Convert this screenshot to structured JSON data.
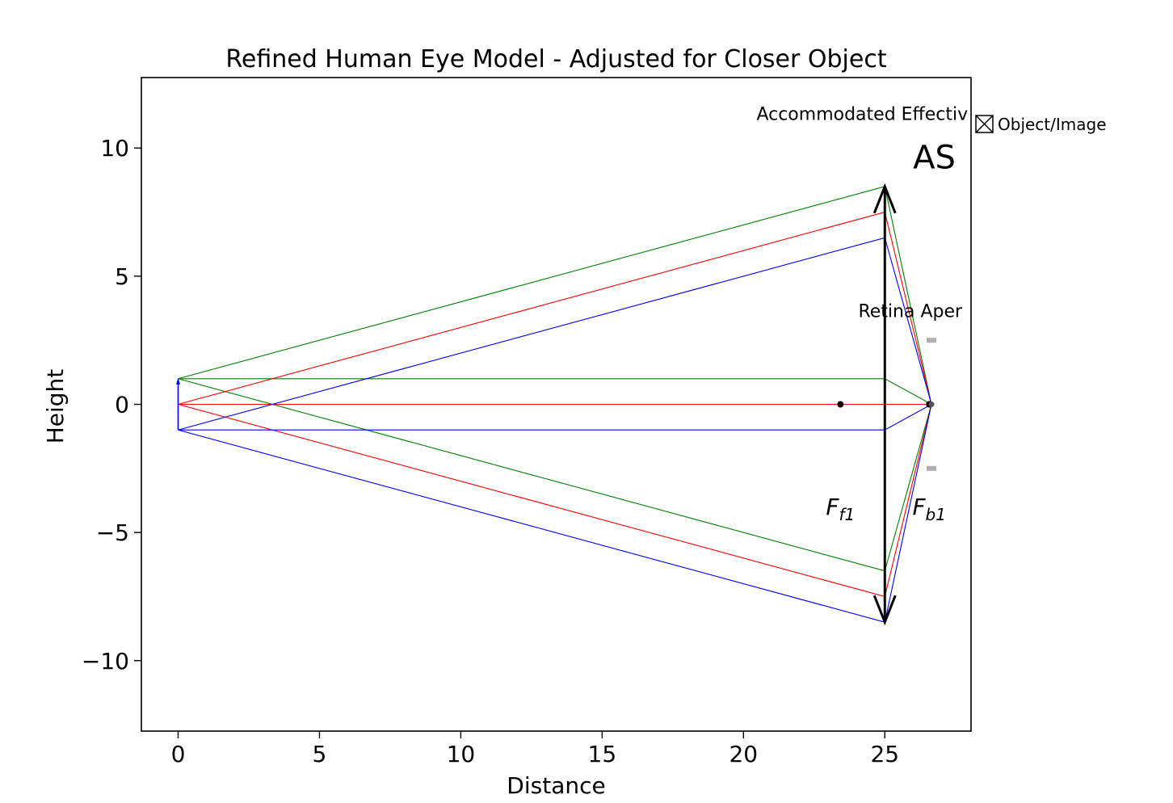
{
  "title": "Refined Human Eye Model - Adjusted for Closer Object",
  "chart_data": {
    "type": "line",
    "title": "Refined Human Eye Model - Adjusted for Closer Object",
    "xlabel": "Distance",
    "ylabel": "Height",
    "xlim": [
      -1.3,
      28.05
    ],
    "ylim": [
      -12.75,
      12.75
    ],
    "xticks": [
      0,
      5,
      10,
      15,
      20,
      25
    ],
    "xtick_labels": [
      "0",
      "5",
      "10",
      "15",
      "20",
      "25"
    ],
    "yticks": [
      -10,
      -5,
      0,
      5,
      10
    ],
    "ytick_labels": [
      "−10",
      "−5",
      "0",
      "5",
      "10"
    ],
    "grid": false,
    "lens": {
      "x": 25,
      "half_height": 8.5,
      "color": "#000000"
    },
    "object": {
      "x": 0,
      "y_bottom": -1,
      "y_top": 1,
      "color": "#0000ff"
    },
    "focal_points": [
      {
        "name": "F_f1",
        "base": "F",
        "sub": "f1",
        "x": 23.43,
        "y": 0,
        "label_x": 23.43,
        "label_y": -4.3
      },
      {
        "name": "F_b1",
        "base": "F",
        "sub": "b1",
        "x": 26.57,
        "y": 0,
        "label_x": 26.57,
        "label_y": -4.3
      }
    ],
    "retina_x": 26.65,
    "aperture_marks": [
      {
        "x": 26.65,
        "y": 2.5,
        "color": "#b0b0b0"
      },
      {
        "x": 26.65,
        "y": -2.5,
        "color": "#b0b0b0"
      }
    ],
    "rays": [
      {
        "color": "#008000",
        "points": [
          [
            0,
            1
          ],
          [
            25,
            8.5
          ],
          [
            26.65,
            0
          ]
        ]
      },
      {
        "color": "#008000",
        "points": [
          [
            0,
            1
          ],
          [
            25,
            1
          ],
          [
            26.65,
            0
          ]
        ]
      },
      {
        "color": "#008000",
        "points": [
          [
            0,
            1
          ],
          [
            25,
            -6.5
          ],
          [
            26.65,
            0
          ]
        ]
      },
      {
        "color": "#ff0000",
        "points": [
          [
            0,
            0
          ],
          [
            25,
            7.5
          ],
          [
            26.65,
            0
          ]
        ]
      },
      {
        "color": "#ff0000",
        "points": [
          [
            0,
            0
          ],
          [
            25,
            0
          ],
          [
            26.65,
            0
          ]
        ]
      },
      {
        "color": "#ff0000",
        "points": [
          [
            0,
            0
          ],
          [
            25,
            -7.5
          ],
          [
            26.65,
            0
          ]
        ]
      },
      {
        "color": "#0000ff",
        "points": [
          [
            0,
            -1
          ],
          [
            25,
            6.5
          ],
          [
            26.65,
            0
          ]
        ]
      },
      {
        "color": "#0000ff",
        "points": [
          [
            0,
            -1
          ],
          [
            25,
            -1
          ],
          [
            26.65,
            0
          ]
        ]
      },
      {
        "color": "#0000ff",
        "points": [
          [
            0,
            -1
          ],
          [
            25,
            -8.5
          ],
          [
            26.65,
            0
          ]
        ]
      }
    ],
    "annotations": [
      {
        "text": "Accommodated Effectiv",
        "x": 24.2,
        "y": 11.1
      },
      {
        "text": "Retina Aper",
        "x": 25.9,
        "y": 3.4
      }
    ],
    "as_label": {
      "text": "AS",
      "x": 26.75,
      "y": 9.2
    },
    "legend": {
      "placement": "upper-right-outside",
      "entries": [
        {
          "label": "Object/Image"
        }
      ]
    }
  }
}
